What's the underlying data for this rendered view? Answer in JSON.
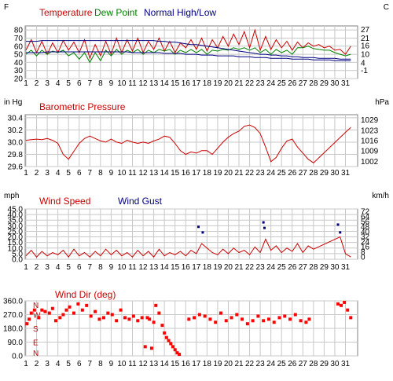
{
  "panels": [
    {
      "id": "temperature",
      "left_unit": "F",
      "right_unit": "C",
      "titles": [
        {
          "text": "Temperature",
          "color": "#cc0000"
        },
        {
          "text": "Dew Point",
          "color": "#008000"
        },
        {
          "text": "Normal High/Low",
          "color": "#000080"
        }
      ],
      "left_ticks": [
        20,
        30,
        40,
        50,
        60,
        70,
        80
      ],
      "right_ticks": [
        -1,
        4,
        10,
        16,
        21,
        27
      ],
      "ylim": [
        20,
        85
      ]
    },
    {
      "id": "pressure",
      "left_unit": "in Hg",
      "right_unit": "hPa",
      "titles": [
        {
          "text": "Barometric Pressure",
          "color": "#cc0000"
        }
      ],
      "left_ticks": [
        29.6,
        29.8,
        30.0,
        30.2,
        30.4
      ],
      "left_tick_labels": [
        "29.6",
        "29.8",
        "30.0",
        "30.2",
        "30.4"
      ],
      "right_ticks": [
        1002,
        1009,
        1016,
        1023,
        1029
      ],
      "ylim": [
        29.6,
        30.45
      ]
    },
    {
      "id": "wind",
      "left_unit": "mph",
      "right_unit": "km/h",
      "titles": [
        {
          "text": "Wind Speed",
          "color": "#cc0000"
        },
        {
          "text": "Wind Gust",
          "color": "#000080"
        }
      ],
      "left_ticks": [
        0.0,
        5.0,
        10.0,
        15.0,
        20.0,
        25.0,
        30.0,
        35.0,
        40.0,
        45.0
      ],
      "left_tick_labels": [
        "0.0",
        "5.0",
        "10.0",
        "15.0",
        "20.0",
        "25.0",
        "30.0",
        "35.0",
        "40.0",
        "45.0"
      ],
      "right_ticks": [
        0,
        8,
        16,
        24,
        32,
        40,
        48,
        56,
        64,
        72
      ],
      "ylim": [
        0,
        45
      ]
    },
    {
      "id": "winddir",
      "left_unit": "",
      "right_unit": "",
      "titles": [
        {
          "text": "Wind Dir (deg)",
          "color": "#cc0000"
        }
      ],
      "left_ticks": [
        0.0,
        90.0,
        180.0,
        270.0,
        360.0
      ],
      "left_tick_labels": [
        "0.0",
        "90.0",
        "180.0",
        "270.0",
        "360.0"
      ],
      "compass": [
        {
          "label": "N",
          "value": 360
        },
        {
          "label": "W",
          "value": 270
        },
        {
          "label": "S",
          "value": 180
        },
        {
          "label": "E",
          "value": 90
        },
        {
          "label": "N",
          "value": 0
        }
      ],
      "ylim": [
        0,
        360
      ]
    }
  ],
  "x_days": [
    "1",
    "2",
    "3",
    "4",
    "5",
    "6",
    "7",
    "8",
    "9",
    "10",
    "11",
    "12",
    "13",
    "14",
    "15",
    "16",
    "17",
    "18",
    "19",
    "20",
    "21",
    "22",
    "23",
    "24",
    "25",
    "26",
    "27",
    "28",
    "29",
    "30",
    "31"
  ],
  "chart_data": [
    {
      "type": "line",
      "x": [
        1,
        1.5,
        2,
        2.5,
        3,
        3.5,
        4,
        4.5,
        5,
        5.5,
        6,
        6.5,
        7,
        7.5,
        8,
        8.5,
        9,
        9.5,
        10,
        10.5,
        11,
        11.5,
        12,
        12.5,
        13,
        13.5,
        14,
        14.5,
        15,
        15.5,
        16,
        16.5,
        17,
        17.5,
        18,
        18.5,
        19,
        19.5,
        20,
        20.5,
        21,
        21.5,
        22,
        22.5,
        23,
        23.5,
        24,
        24.5,
        25,
        25.5,
        26,
        26.5,
        27,
        27.5,
        28,
        28.5,
        29,
        29.5,
        30,
        30.5,
        31,
        31.5
      ],
      "series": [
        {
          "name": "Temperature",
          "values": [
            55,
            68,
            52,
            66,
            50,
            64,
            52,
            67,
            55,
            65,
            52,
            68,
            45,
            62,
            48,
            66,
            50,
            70,
            52,
            68,
            54,
            70,
            52,
            66,
            56,
            70,
            54,
            66,
            52,
            64,
            58,
            68,
            56,
            70,
            54,
            68,
            58,
            72,
            60,
            75,
            62,
            78,
            58,
            80,
            55,
            72,
            56,
            68,
            58,
            66,
            55,
            65,
            58,
            64,
            60,
            62,
            58,
            60,
            55,
            56,
            50,
            60
          ]
        },
        {
          "name": "Dew Point",
          "values": [
            50,
            55,
            48,
            55,
            50,
            54,
            52,
            55,
            48,
            52,
            44,
            52,
            40,
            52,
            42,
            55,
            48,
            56,
            50,
            55,
            52,
            56,
            50,
            55,
            52,
            56,
            54,
            56,
            50,
            55,
            52,
            56,
            52,
            56,
            50,
            55,
            54,
            56,
            55,
            58,
            56,
            58,
            55,
            58,
            52,
            56,
            50,
            56,
            52,
            55,
            50,
            58,
            58,
            60,
            57,
            56,
            55,
            55,
            52,
            50,
            48,
            50
          ]
        },
        {
          "name": "Normal High",
          "values": [
            66,
            66,
            66,
            67,
            67,
            67,
            67,
            67,
            67,
            67,
            67,
            67,
            67,
            67,
            67,
            67,
            67,
            67,
            67,
            67,
            67,
            67,
            67,
            67,
            67,
            66,
            66,
            65,
            65,
            64,
            63,
            62,
            62,
            61,
            60,
            59,
            58,
            57,
            56,
            55,
            54,
            53,
            52,
            51,
            50,
            50,
            49,
            49,
            48,
            48,
            47,
            47,
            46,
            46,
            46,
            45,
            45,
            45,
            45,
            44,
            44,
            44
          ]
        },
        {
          "name": "Normal Low",
          "values": [
            52,
            52,
            52,
            52,
            53,
            53,
            53,
            53,
            53,
            53,
            53,
            53,
            53,
            53,
            53,
            53,
            53,
            53,
            53,
            53,
            52,
            52,
            52,
            52,
            52,
            52,
            51,
            51,
            51,
            51,
            50,
            50,
            50,
            49,
            49,
            49,
            48,
            48,
            48,
            48,
            47,
            47,
            47,
            46,
            46,
            46,
            45,
            45,
            45,
            45,
            44,
            44,
            44,
            44,
            43,
            43,
            43,
            43,
            42,
            42,
            42,
            42
          ]
        }
      ],
      "ylim": [
        20,
        85
      ]
    },
    {
      "type": "line",
      "x": [
        1,
        1.5,
        2,
        2.5,
        3,
        3.5,
        4,
        4.5,
        5,
        5.5,
        6,
        6.5,
        7,
        7.5,
        8,
        8.5,
        9,
        9.5,
        10,
        10.5,
        11,
        11.5,
        12,
        12.5,
        13,
        13.5,
        14,
        14.5,
        15,
        15.5,
        16,
        16.5,
        17,
        17.5,
        18,
        18.5,
        19,
        19.5,
        20,
        20.5,
        21,
        21.5,
        22,
        22.5,
        23,
        23.5,
        24,
        24.5,
        25,
        25.5,
        26,
        26.5,
        27,
        27.5,
        28,
        31,
        31.5
      ],
      "series": [
        {
          "name": "Barometric Pressure",
          "values": [
            30.03,
            30.04,
            30.05,
            30.04,
            30.06,
            30.03,
            29.98,
            29.8,
            29.72,
            29.85,
            29.98,
            30.06,
            30.1,
            30.06,
            30.02,
            30.0,
            30.05,
            30.0,
            29.98,
            30.03,
            30.0,
            29.98,
            30.0,
            29.98,
            30.02,
            30.05,
            30.1,
            30.08,
            29.98,
            29.86,
            29.8,
            29.84,
            29.82,
            29.86,
            29.86,
            29.8,
            29.9,
            30.0,
            30.08,
            30.14,
            30.18,
            30.26,
            30.28,
            30.24,
            30.14,
            29.92,
            29.68,
            29.75,
            29.9,
            30.02,
            30.05,
            29.92,
            29.82,
            29.72,
            29.66,
            30.16,
            30.24
          ]
        }
      ],
      "ylim": [
        29.6,
        30.45
      ]
    },
    {
      "type": "line",
      "x": [
        1,
        1.5,
        2,
        2.5,
        3,
        3.5,
        4,
        4.5,
        5,
        5.5,
        6,
        6.5,
        7,
        7.5,
        8,
        8.5,
        9,
        9.5,
        10,
        10.5,
        11,
        11.5,
        12,
        12.5,
        13,
        13.5,
        14,
        14.5,
        15,
        15.5,
        16,
        16.5,
        17,
        17.5,
        18,
        18.5,
        19,
        19.5,
        20,
        20.5,
        21,
        21.5,
        22,
        22.5,
        23,
        23.5,
        24,
        24.5,
        25,
        25.5,
        26,
        26.5,
        27,
        27.5,
        28,
        30.5,
        31,
        31.5
      ],
      "series": [
        {
          "name": "Wind Speed",
          "values": [
            3,
            8,
            2,
            7,
            3,
            6,
            4,
            8,
            2,
            9,
            3,
            6,
            2,
            7,
            3,
            9,
            4,
            8,
            3,
            6,
            2,
            8,
            3,
            7,
            2,
            9,
            3,
            6,
            4,
            7,
            3,
            8,
            5,
            14,
            10,
            6,
            4,
            9,
            5,
            10,
            6,
            8,
            4,
            11,
            6,
            18,
            8,
            12,
            6,
            10,
            7,
            14,
            6,
            12,
            9,
            20,
            5,
            2
          ]
        }
      ],
      "gust_x": [
        17.2,
        17.6,
        23.3,
        23.4,
        30.3,
        30.5
      ],
      "gust_values": [
        29,
        24,
        33,
        28,
        31,
        24
      ],
      "gust_name": "Wind Gust",
      "ylim": [
        0,
        45
      ]
    },
    {
      "type": "scatter",
      "name": "Wind Dir (deg)",
      "x": [
        1.1,
        1.3,
        1.5,
        1.8,
        2.2,
        2.5,
        2.8,
        3.2,
        3.5,
        3.8,
        4.2,
        4.5,
        4.8,
        5.1,
        5.5,
        5.9,
        6.3,
        6.7,
        7.1,
        7.5,
        7.9,
        8.3,
        8.7,
        9.1,
        9.5,
        9.9,
        10.3,
        10.7,
        11.1,
        11.5,
        11.9,
        12.2,
        12.4,
        12.6,
        12.8,
        13.0,
        13.2,
        13.5,
        13.8,
        14.0,
        14.2,
        14.4,
        14.6,
        14.8,
        15.0,
        15.2,
        15.4,
        16.3,
        16.8,
        17.3,
        17.8,
        18.3,
        18.8,
        19.3,
        19.8,
        20.3,
        20.8,
        21.3,
        21.8,
        22.3,
        22.8,
        23.3,
        23.8,
        24.3,
        24.8,
        25.3,
        25.8,
        26.3,
        26.8,
        27.3,
        27.6,
        30.3,
        30.6,
        30.9,
        31.2,
        31.5
      ],
      "values": [
        210,
        240,
        280,
        300,
        250,
        300,
        290,
        280,
        310,
        230,
        250,
        270,
        300,
        320,
        280,
        340,
        300,
        330,
        260,
        290,
        240,
        250,
        280,
        270,
        230,
        300,
        250,
        240,
        260,
        230,
        250,
        60,
        250,
        240,
        50,
        220,
        330,
        280,
        200,
        150,
        120,
        100,
        80,
        60,
        40,
        20,
        10,
        240,
        250,
        270,
        260,
        240,
        220,
        280,
        230,
        250,
        270,
        240,
        210,
        230,
        260,
        230,
        240,
        220,
        250,
        260,
        240,
        270,
        230,
        220,
        240,
        340,
        330,
        350,
        300,
        250
      ],
      "ylim": [
        0,
        360
      ]
    }
  ]
}
